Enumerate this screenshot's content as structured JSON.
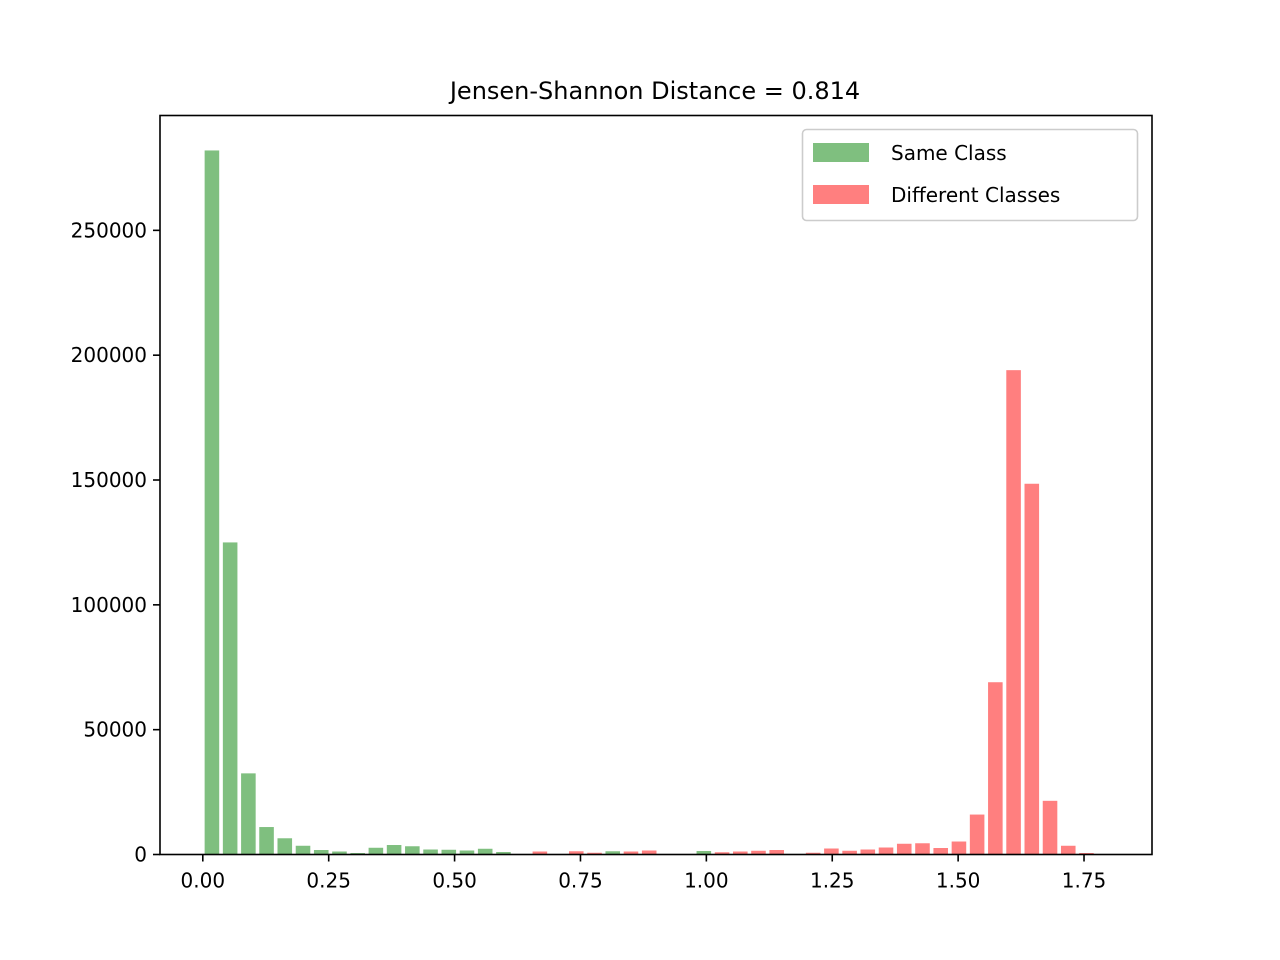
{
  "colors": {
    "same": "#008000",
    "different": "#ff0000",
    "bar_opacity": 0.5
  },
  "chart_data": {
    "type": "bar",
    "title": "Jensen-Shannon Distance = 0.814",
    "xlabel": "",
    "ylabel": "",
    "xlim": [
      -0.085,
      1.885
    ],
    "ylim": [
      0,
      296000
    ],
    "bin_width": 0.03618,
    "bar_width_fraction": 0.8,
    "x_ticks": [
      0.0,
      0.25,
      0.5,
      0.75,
      1.0,
      1.25,
      1.5,
      1.75
    ],
    "x_tick_labels": [
      "0.00",
      "0.25",
      "0.50",
      "0.75",
      "1.00",
      "1.25",
      "1.50",
      "1.75"
    ],
    "y_ticks": [
      0,
      50000,
      100000,
      150000,
      200000,
      250000
    ],
    "y_tick_labels": [
      "0",
      "50000",
      "100000",
      "150000",
      "200000",
      "250000"
    ],
    "grid": false,
    "legend_placement": "top-right",
    "series": [
      {
        "name": "Same Class",
        "color_key": "same",
        "x": [
          0.0181,
          0.0543,
          0.0905,
          0.1266,
          0.1628,
          0.199,
          0.2352,
          0.2714,
          0.3076,
          0.3437,
          0.3799,
          0.4161,
          0.4523,
          0.4885,
          0.5246,
          0.5608,
          0.597,
          0.8141,
          0.995
        ],
        "values": [
          282000,
          125000,
          32500,
          11000,
          6500,
          3500,
          1800,
          1200,
          600,
          2700,
          3800,
          3300,
          2000,
          1900,
          1600,
          2300,
          1000,
          1300,
          1400
        ]
      },
      {
        "name": "Different Classes",
        "color_key": "different",
        "x": [
          0.6694,
          0.7417,
          0.7779,
          0.8503,
          0.8865,
          1.0312,
          1.0674,
          1.1035,
          1.1397,
          1.2121,
          1.2483,
          1.2845,
          1.3206,
          1.3568,
          1.393,
          1.4292,
          1.4654,
          1.5016,
          1.5377,
          1.5739,
          1.6101,
          1.6463,
          1.6825,
          1.7187,
          1.7548
        ],
        "values": [
          1200,
          1300,
          700,
          1200,
          1600,
          900,
          1200,
          1500,
          1800,
          700,
          2400,
          1500,
          2000,
          2800,
          4300,
          4500,
          2600,
          5200,
          16000,
          69000,
          194000,
          148500,
          21500,
          3500,
          600
        ]
      }
    ]
  }
}
